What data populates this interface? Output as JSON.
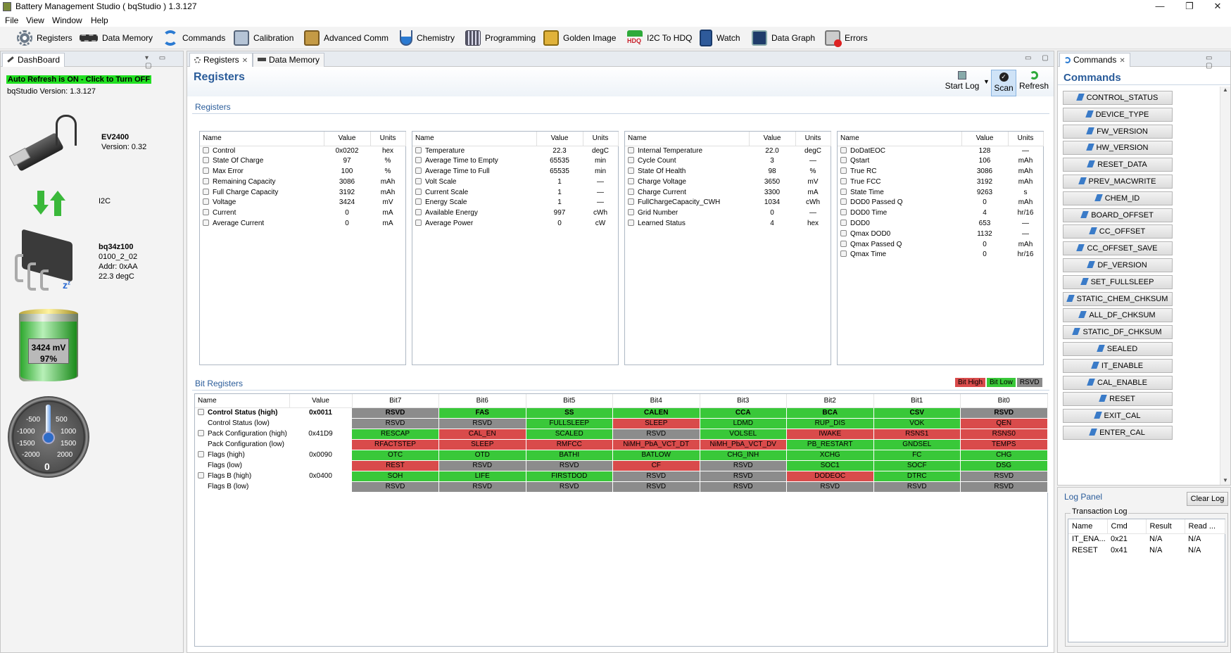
{
  "window": {
    "title": "Battery Management Studio ( bqStudio ) 1.3.127",
    "controls": {
      "minimize": "—",
      "restore": "❐",
      "close": "✕"
    }
  },
  "menu": [
    "File",
    "View",
    "Window",
    "Help"
  ],
  "toolbar": [
    {
      "label": "Registers",
      "icon": "gear-icon"
    },
    {
      "label": "Data Memory",
      "icon": "memory-chip-icon"
    },
    {
      "label": "Commands",
      "icon": "refresh-arrows-icon"
    },
    {
      "label": "Calibration",
      "icon": "calibration-icon"
    },
    {
      "label": "Advanced Comm",
      "icon": "advanced-comm-icon"
    },
    {
      "label": "Chemistry",
      "icon": "flask-icon"
    },
    {
      "label": "Programming",
      "icon": "programming-icon"
    },
    {
      "label": "Golden Image",
      "icon": "golden-image-icon"
    },
    {
      "label": "I2C To HDQ",
      "icon": "hdq-icon",
      "icon_text": "HDQ"
    },
    {
      "label": "Watch",
      "icon": "watch-icon"
    },
    {
      "label": "Data Graph",
      "icon": "data-graph-icon"
    },
    {
      "label": "Errors",
      "icon": "errors-icon"
    }
  ],
  "dashboard": {
    "tab": "DashBoard",
    "auto_refresh": "Auto Refresh is ON - Click to Turn OFF",
    "version": "bqStudio Version:  1.3.127",
    "adapter": {
      "name": "EV2400",
      "version": "Version: 0.32"
    },
    "bus": "I2C",
    "device": {
      "name": "bq34z100",
      "fw": "0100_2_02",
      "addr": "Addr: 0xAA",
      "temp": "22.3 degC"
    },
    "battery": {
      "voltage": "3424 mV",
      "soc": "97%",
      "soc_value": 97
    },
    "gauge": {
      "labels": [
        "-500",
        "500",
        "-1000",
        "1000",
        "-1500",
        "1500",
        "-2000",
        "2000"
      ],
      "value": "0"
    }
  },
  "center_tabs": [
    {
      "label": "Registers",
      "active": true
    },
    {
      "label": "Data Memory",
      "active": false
    }
  ],
  "registers_view": {
    "title": "Registers",
    "actions": {
      "start_log": "Start Log",
      "scan": "Scan",
      "refresh": "Refresh"
    },
    "section": "Registers",
    "headers": {
      "name": "Name",
      "value": "Value",
      "units": "Units"
    },
    "tables": [
      [
        {
          "name": "Control",
          "value": "0x0202",
          "units": "hex"
        },
        {
          "name": "State Of Charge",
          "value": "97",
          "units": "%"
        },
        {
          "name": "Max Error",
          "value": "100",
          "units": "%"
        },
        {
          "name": "Remaining Capacity",
          "value": "3086",
          "units": "mAh"
        },
        {
          "name": "Full Charge Capacity",
          "value": "3192",
          "units": "mAh"
        },
        {
          "name": "Voltage",
          "value": "3424",
          "units": "mV"
        },
        {
          "name": "Current",
          "value": "0",
          "units": "mA"
        },
        {
          "name": "Average Current",
          "value": "0",
          "units": "mA"
        }
      ],
      [
        {
          "name": "Temperature",
          "value": "22.3",
          "units": "degC"
        },
        {
          "name": "Average Time to Empty",
          "value": "65535",
          "units": "min"
        },
        {
          "name": "Average Time to Full",
          "value": "65535",
          "units": "min"
        },
        {
          "name": "Volt Scale",
          "value": "1",
          "units": "—"
        },
        {
          "name": "Current Scale",
          "value": "1",
          "units": "—"
        },
        {
          "name": "Energy Scale",
          "value": "1",
          "units": "—"
        },
        {
          "name": "Available Energy",
          "value": "997",
          "units": "cWh"
        },
        {
          "name": "Average Power",
          "value": "0",
          "units": "cW"
        }
      ],
      [
        {
          "name": "Internal Temperature",
          "value": "22.0",
          "units": "degC"
        },
        {
          "name": "Cycle Count",
          "value": "3",
          "units": "—"
        },
        {
          "name": "State Of Health",
          "value": "98",
          "units": "%"
        },
        {
          "name": "Charge Voltage",
          "value": "3650",
          "units": "mV"
        },
        {
          "name": "Charge Current",
          "value": "3300",
          "units": "mA"
        },
        {
          "name": "FullChargeCapacity_CWH",
          "value": "1034",
          "units": "cWh"
        },
        {
          "name": "Grid Number",
          "value": "0",
          "units": "—"
        },
        {
          "name": "Learned Status",
          "value": "4",
          "units": "hex"
        }
      ],
      [
        {
          "name": "DoDatEOC",
          "value": "128",
          "units": "—"
        },
        {
          "name": "Qstart",
          "value": "106",
          "units": "mAh"
        },
        {
          "name": "True RC",
          "value": "3086",
          "units": "mAh"
        },
        {
          "name": "True FCC",
          "value": "3192",
          "units": "mAh"
        },
        {
          "name": "State Time",
          "value": "9263",
          "units": "s"
        },
        {
          "name": "DOD0 Passed Q",
          "value": "0",
          "units": "mAh"
        },
        {
          "name": "DOD0 Time",
          "value": "4",
          "units": "hr/16"
        },
        {
          "name": "DOD0",
          "value": "653",
          "units": "—"
        },
        {
          "name": "Qmax DOD0",
          "value": "1132",
          "units": "—"
        },
        {
          "name": "Qmax Passed Q",
          "value": "0",
          "units": "mAh"
        },
        {
          "name": "Qmax Time",
          "value": "0",
          "units": "hr/16"
        }
      ]
    ]
  },
  "bit_registers": {
    "section": "Bit Registers",
    "legend": [
      {
        "label": "Bit High",
        "color": "#d94b4b"
      },
      {
        "label": "Bit Low",
        "color": "#39c839"
      },
      {
        "label": "RSVD",
        "color": "#8c8c8c"
      }
    ],
    "headers": [
      "Name",
      "Value",
      "Bit7",
      "Bit6",
      "Bit5",
      "Bit4",
      "Bit3",
      "Bit2",
      "Bit1",
      "Bit0"
    ],
    "rows": [
      {
        "name": "Control Status (high)",
        "value": "0x0011",
        "bold": true,
        "lock": true,
        "bits": [
          [
            "RSVD",
            "y"
          ],
          [
            "FAS",
            "g"
          ],
          [
            "SS",
            "g"
          ],
          [
            "CALEN",
            "g"
          ],
          [
            "CCA",
            "g"
          ],
          [
            "BCA",
            "g"
          ],
          [
            "CSV",
            "g"
          ],
          [
            "RSVD",
            "y"
          ]
        ]
      },
      {
        "name": "Control Status (low)",
        "value": "",
        "bold": false,
        "lock": false,
        "bits": [
          [
            "RSVD",
            "y"
          ],
          [
            "RSVD",
            "y"
          ],
          [
            "FULLSLEEP",
            "g"
          ],
          [
            "SLEEP",
            "r"
          ],
          [
            "LDMD",
            "g"
          ],
          [
            "RUP_DIS",
            "g"
          ],
          [
            "VOK",
            "g"
          ],
          [
            "QEN",
            "r"
          ]
        ]
      },
      {
        "name": "Pack Configuration (high)",
        "value": "0x41D9",
        "bold": false,
        "lock": true,
        "bits": [
          [
            "RESCAP",
            "g"
          ],
          [
            "CAL_EN",
            "r"
          ],
          [
            "SCALED",
            "g"
          ],
          [
            "RSVD",
            "y"
          ],
          [
            "VOLSEL",
            "g"
          ],
          [
            "IWAKE",
            "r"
          ],
          [
            "RSNS1",
            "r"
          ],
          [
            "RSNS0",
            "r"
          ]
        ]
      },
      {
        "name": "Pack Configuration (low)",
        "value": "",
        "bold": false,
        "lock": false,
        "bits": [
          [
            "RFACTSTEP",
            "r"
          ],
          [
            "SLEEP",
            "r"
          ],
          [
            "RMFCC",
            "r"
          ],
          [
            "NiMH_PbA_VCT_DT",
            "r"
          ],
          [
            "NiMH_PbA_VCT_DV",
            "r"
          ],
          [
            "PB_RESTART",
            "g"
          ],
          [
            "GNDSEL",
            "g"
          ],
          [
            "TEMPS",
            "r"
          ]
        ]
      },
      {
        "name": "Flags (high)",
        "value": "0x0090",
        "bold": false,
        "lock": true,
        "bits": [
          [
            "OTC",
            "g"
          ],
          [
            "OTD",
            "g"
          ],
          [
            "BATHI",
            "g"
          ],
          [
            "BATLOW",
            "g"
          ],
          [
            "CHG_INH",
            "g"
          ],
          [
            "XCHG",
            "g"
          ],
          [
            "FC",
            "g"
          ],
          [
            "CHG",
            "g"
          ]
        ]
      },
      {
        "name": "Flags (low)",
        "value": "",
        "bold": false,
        "lock": false,
        "bits": [
          [
            "REST",
            "r"
          ],
          [
            "RSVD",
            "y"
          ],
          [
            "RSVD",
            "y"
          ],
          [
            "CF",
            "r"
          ],
          [
            "RSVD",
            "y"
          ],
          [
            "SOC1",
            "g"
          ],
          [
            "SOCF",
            "g"
          ],
          [
            "DSG",
            "g"
          ]
        ]
      },
      {
        "name": "Flags B (high)",
        "value": "0x0400",
        "bold": false,
        "lock": true,
        "bits": [
          [
            "SOH",
            "g"
          ],
          [
            "LIFE",
            "g"
          ],
          [
            "FIRSTDOD",
            "g"
          ],
          [
            "RSVD",
            "y"
          ],
          [
            "RSVD",
            "y"
          ],
          [
            "DODEOC",
            "r"
          ],
          [
            "DTRC",
            "g"
          ],
          [
            "RSVD",
            "y"
          ]
        ]
      },
      {
        "name": "Flags B (low)",
        "value": "",
        "bold": false,
        "lock": false,
        "bits": [
          [
            "RSVD",
            "y"
          ],
          [
            "RSVD",
            "y"
          ],
          [
            "RSVD",
            "y"
          ],
          [
            "RSVD",
            "y"
          ],
          [
            "RSVD",
            "y"
          ],
          [
            "RSVD",
            "y"
          ],
          [
            "RSVD",
            "y"
          ],
          [
            "RSVD",
            "y"
          ]
        ]
      }
    ]
  },
  "commands": {
    "tab": "Commands",
    "title": "Commands",
    "items": [
      "CONTROL_STATUS",
      "DEVICE_TYPE",
      "FW_VERSION",
      "HW_VERSION",
      "RESET_DATA",
      "PREV_MACWRITE",
      "CHEM_ID",
      "BOARD_OFFSET",
      "CC_OFFSET",
      "CC_OFFSET_SAVE",
      "DF_VERSION",
      "SET_FULLSLEEP",
      "STATIC_CHEM_CHKSUM",
      "ALL_DF_CHKSUM",
      "STATIC_DF_CHKSUM",
      "SEALED",
      "IT_ENABLE",
      "CAL_ENABLE",
      "RESET",
      "EXIT_CAL",
      "ENTER_CAL"
    ]
  },
  "log_panel": {
    "title": "Log Panel",
    "clear": "Clear Log",
    "group": "Transaction Log",
    "headers": [
      "Name",
      "Cmd",
      "Result",
      "Read ..."
    ],
    "rows": [
      [
        "IT_ENA...",
        "0x21",
        "N/A",
        "N/A"
      ],
      [
        "RESET",
        "0x41",
        "N/A",
        "N/A"
      ]
    ]
  }
}
